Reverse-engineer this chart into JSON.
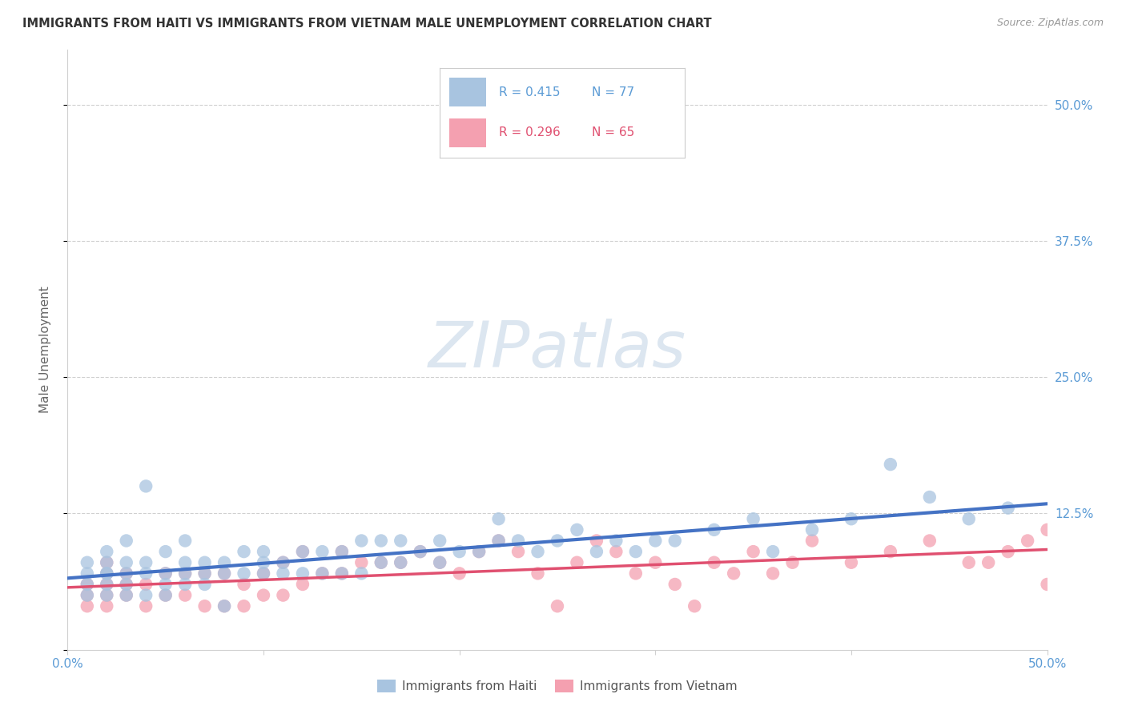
{
  "title": "IMMIGRANTS FROM HAITI VS IMMIGRANTS FROM VIETNAM MALE UNEMPLOYMENT CORRELATION CHART",
  "source": "Source: ZipAtlas.com",
  "ylabel": "Male Unemployment",
  "xlim": [
    0.0,
    0.5
  ],
  "ylim": [
    0.0,
    0.55
  ],
  "xticks": [
    0.0,
    0.1,
    0.2,
    0.3,
    0.4,
    0.5
  ],
  "xticklabels": [
    "0.0%",
    "",
    "",
    "",
    "",
    "50.0%"
  ],
  "yticks": [
    0.0,
    0.125,
    0.25,
    0.375,
    0.5
  ],
  "yticklabels": [
    "",
    "12.5%",
    "25.0%",
    "37.5%",
    "50.0%"
  ],
  "haiti_color": "#a8c4e0",
  "vietnam_color": "#f4a0b0",
  "haiti_line_color": "#4472c4",
  "vietnam_line_color": "#e05070",
  "background_color": "#ffffff",
  "grid_color": "#d0d0d0",
  "watermark_text": "ZIPatlas",
  "watermark_color": "#dce6f0",
  "haiti_scatter_x": [
    0.01,
    0.01,
    0.01,
    0.01,
    0.02,
    0.02,
    0.02,
    0.02,
    0.02,
    0.02,
    0.03,
    0.03,
    0.03,
    0.03,
    0.03,
    0.04,
    0.04,
    0.04,
    0.04,
    0.05,
    0.05,
    0.05,
    0.05,
    0.06,
    0.06,
    0.06,
    0.06,
    0.07,
    0.07,
    0.07,
    0.08,
    0.08,
    0.08,
    0.09,
    0.09,
    0.1,
    0.1,
    0.1,
    0.11,
    0.11,
    0.12,
    0.12,
    0.13,
    0.13,
    0.14,
    0.14,
    0.15,
    0.15,
    0.16,
    0.16,
    0.17,
    0.17,
    0.18,
    0.19,
    0.19,
    0.2,
    0.21,
    0.22,
    0.22,
    0.23,
    0.24,
    0.25,
    0.26,
    0.27,
    0.28,
    0.29,
    0.3,
    0.31,
    0.33,
    0.35,
    0.36,
    0.38,
    0.4,
    0.42,
    0.44,
    0.46,
    0.48
  ],
  "haiti_scatter_y": [
    0.05,
    0.06,
    0.07,
    0.08,
    0.05,
    0.06,
    0.07,
    0.07,
    0.08,
    0.09,
    0.05,
    0.06,
    0.07,
    0.08,
    0.1,
    0.05,
    0.07,
    0.08,
    0.15,
    0.05,
    0.06,
    0.07,
    0.09,
    0.06,
    0.07,
    0.08,
    0.1,
    0.06,
    0.07,
    0.08,
    0.04,
    0.07,
    0.08,
    0.07,
    0.09,
    0.07,
    0.08,
    0.09,
    0.07,
    0.08,
    0.07,
    0.09,
    0.07,
    0.09,
    0.07,
    0.09,
    0.07,
    0.1,
    0.08,
    0.1,
    0.08,
    0.1,
    0.09,
    0.08,
    0.1,
    0.09,
    0.09,
    0.1,
    0.12,
    0.1,
    0.09,
    0.1,
    0.11,
    0.09,
    0.1,
    0.09,
    0.1,
    0.1,
    0.11,
    0.12,
    0.09,
    0.11,
    0.12,
    0.17,
    0.14,
    0.12,
    0.13
  ],
  "vietnam_scatter_x": [
    0.01,
    0.01,
    0.01,
    0.02,
    0.02,
    0.02,
    0.02,
    0.02,
    0.03,
    0.03,
    0.03,
    0.04,
    0.04,
    0.05,
    0.05,
    0.06,
    0.06,
    0.07,
    0.07,
    0.08,
    0.08,
    0.09,
    0.09,
    0.1,
    0.1,
    0.11,
    0.11,
    0.12,
    0.12,
    0.13,
    0.14,
    0.14,
    0.15,
    0.16,
    0.17,
    0.18,
    0.19,
    0.2,
    0.21,
    0.22,
    0.23,
    0.24,
    0.25,
    0.26,
    0.27,
    0.28,
    0.29,
    0.3,
    0.31,
    0.32,
    0.33,
    0.34,
    0.35,
    0.36,
    0.37,
    0.38,
    0.4,
    0.42,
    0.44,
    0.46,
    0.47,
    0.48,
    0.49,
    0.5,
    0.5
  ],
  "vietnam_scatter_y": [
    0.04,
    0.05,
    0.06,
    0.04,
    0.05,
    0.06,
    0.07,
    0.08,
    0.05,
    0.06,
    0.07,
    0.04,
    0.06,
    0.05,
    0.07,
    0.05,
    0.07,
    0.04,
    0.07,
    0.04,
    0.07,
    0.04,
    0.06,
    0.05,
    0.07,
    0.05,
    0.08,
    0.06,
    0.09,
    0.07,
    0.07,
    0.09,
    0.08,
    0.08,
    0.08,
    0.09,
    0.08,
    0.07,
    0.09,
    0.1,
    0.09,
    0.07,
    0.04,
    0.08,
    0.1,
    0.09,
    0.07,
    0.08,
    0.06,
    0.04,
    0.08,
    0.07,
    0.09,
    0.07,
    0.08,
    0.1,
    0.08,
    0.09,
    0.1,
    0.08,
    0.08,
    0.09,
    0.1,
    0.11,
    0.06
  ]
}
